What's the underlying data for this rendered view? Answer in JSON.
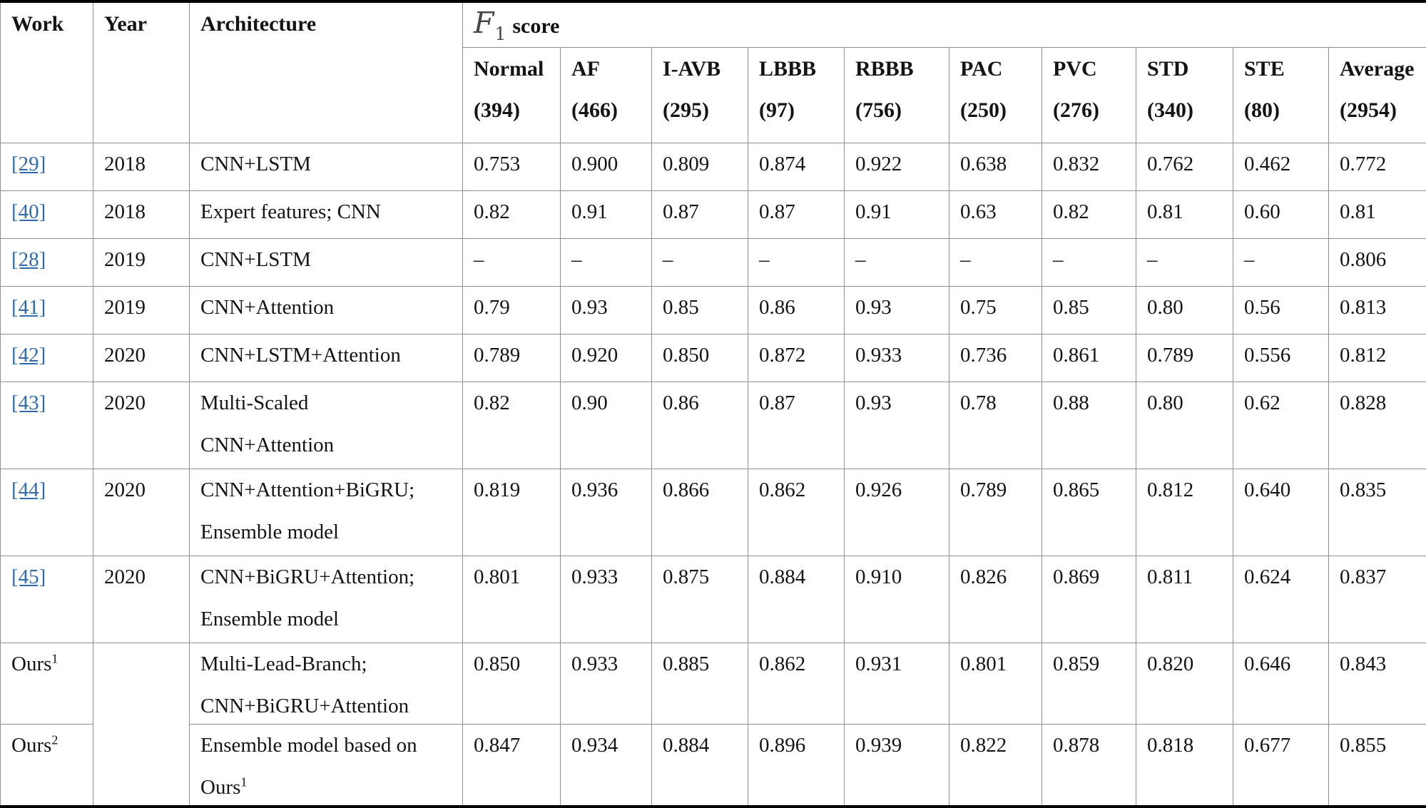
{
  "colors": {
    "link_blue": "#2f6bae",
    "grid_gray": "#8f8f8f",
    "outer_border": "#000000"
  },
  "table": {
    "header": {
      "work": "Work",
      "year": "Year",
      "architecture": "Architecture",
      "f1_math": "F",
      "f1_sub": "1",
      "f1_word": "score",
      "columns": [
        {
          "name": "Normal",
          "count": "(394)"
        },
        {
          "name": "AF",
          "count": "(466)"
        },
        {
          "name": "I-AVB",
          "count": "(295)"
        },
        {
          "name": "LBBB",
          "count": "(97)"
        },
        {
          "name": "RBBB",
          "count": "(756)"
        },
        {
          "name": "PAC",
          "count": "(250)"
        },
        {
          "name": "PVC",
          "count": "(276)"
        },
        {
          "name": "STD",
          "count": "(340)"
        },
        {
          "name": "STE",
          "count": "(80)"
        },
        {
          "name": "Average",
          "count": "(2954)"
        }
      ]
    },
    "rows": [
      {
        "work": {
          "text": "[29]",
          "link": true
        },
        "year": "2018",
        "arch": [
          {
            "text": "CNN+LSTM"
          }
        ],
        "values": [
          "0.753",
          "0.900",
          "0.809",
          "0.874",
          "0.922",
          "0.638",
          "0.832",
          "0.762",
          "0.462",
          "0.772"
        ]
      },
      {
        "work": {
          "text": "[40]",
          "link": true
        },
        "year": "2018",
        "arch": [
          {
            "text": "Expert features; CNN"
          }
        ],
        "values": [
          "0.82",
          "0.91",
          "0.87",
          "0.87",
          "0.91",
          "0.63",
          "0.82",
          "0.81",
          "0.60",
          "0.81"
        ]
      },
      {
        "work": {
          "text": "[28]",
          "link": true
        },
        "year": "2019",
        "arch": [
          {
            "text": "CNN+LSTM"
          }
        ],
        "values": [
          "–",
          "–",
          "–",
          "–",
          "–",
          "–",
          "–",
          "–",
          "–",
          "0.806"
        ]
      },
      {
        "work": {
          "text": "[41]",
          "link": true
        },
        "year": "2019",
        "arch": [
          {
            "text": "CNN+Attention"
          }
        ],
        "values": [
          "0.79",
          "0.93",
          "0.85",
          "0.86",
          "0.93",
          "0.75",
          "0.85",
          "0.80",
          "0.56",
          "0.813"
        ]
      },
      {
        "work": {
          "text": "[42]",
          "link": true
        },
        "year": "2020",
        "arch": [
          {
            "text": "CNN+LSTM+Attention"
          }
        ],
        "values": [
          "0.789",
          "0.920",
          "0.850",
          "0.872",
          "0.933",
          "0.736",
          "0.861",
          "0.789",
          "0.556",
          "0.812"
        ]
      },
      {
        "work": {
          "text": "[43]",
          "link": true
        },
        "year": "2020",
        "arch": [
          {
            "text": "Multi-Scaled"
          },
          {
            "text": "CNN+Attention"
          }
        ],
        "values": [
          "0.82",
          "0.90",
          "0.86",
          "0.87",
          "0.93",
          "0.78",
          "0.88",
          "0.80",
          "0.62",
          "0.828"
        ]
      },
      {
        "work": {
          "text": "[44]",
          "link": true
        },
        "year": "2020",
        "arch": [
          {
            "text": "CNN+Attention+BiGRU;"
          },
          {
            "text": "Ensemble model"
          }
        ],
        "values": [
          "0.819",
          "0.936",
          "0.866",
          "0.862",
          "0.926",
          "0.789",
          "0.865",
          "0.812",
          "0.640",
          "0.835"
        ]
      },
      {
        "work": {
          "text": "[45]",
          "link": true
        },
        "year": "2020",
        "arch": [
          {
            "text": "CNN+BiGRU+Attention;"
          },
          {
            "text": "Ensemble model"
          }
        ],
        "values": [
          "0.801",
          "0.933",
          "0.875",
          "0.884",
          "0.910",
          "0.826",
          "0.869",
          "0.811",
          "0.624",
          "0.837"
        ]
      },
      {
        "work": {
          "text": "Ours",
          "sup": "1"
        },
        "year": "",
        "year_rowspan": 2,
        "arch": [
          {
            "text": "Multi-Lead-Branch;"
          },
          {
            "text": "CNN+BiGRU+Attention"
          }
        ],
        "values": [
          "0.850",
          "0.933",
          "0.885",
          "0.862",
          "0.931",
          "0.801",
          "0.859",
          "0.820",
          "0.646",
          "0.843"
        ]
      },
      {
        "work": {
          "text": "Ours",
          "sup": "2"
        },
        "skip_year": true,
        "arch": [
          {
            "text": "Ensemble model based on"
          },
          {
            "text": "Ours",
            "sup": "1"
          }
        ],
        "values": [
          "0.847",
          "0.934",
          "0.884",
          "0.896",
          "0.939",
          "0.822",
          "0.878",
          "0.818",
          "0.677",
          "0.855"
        ]
      }
    ]
  }
}
